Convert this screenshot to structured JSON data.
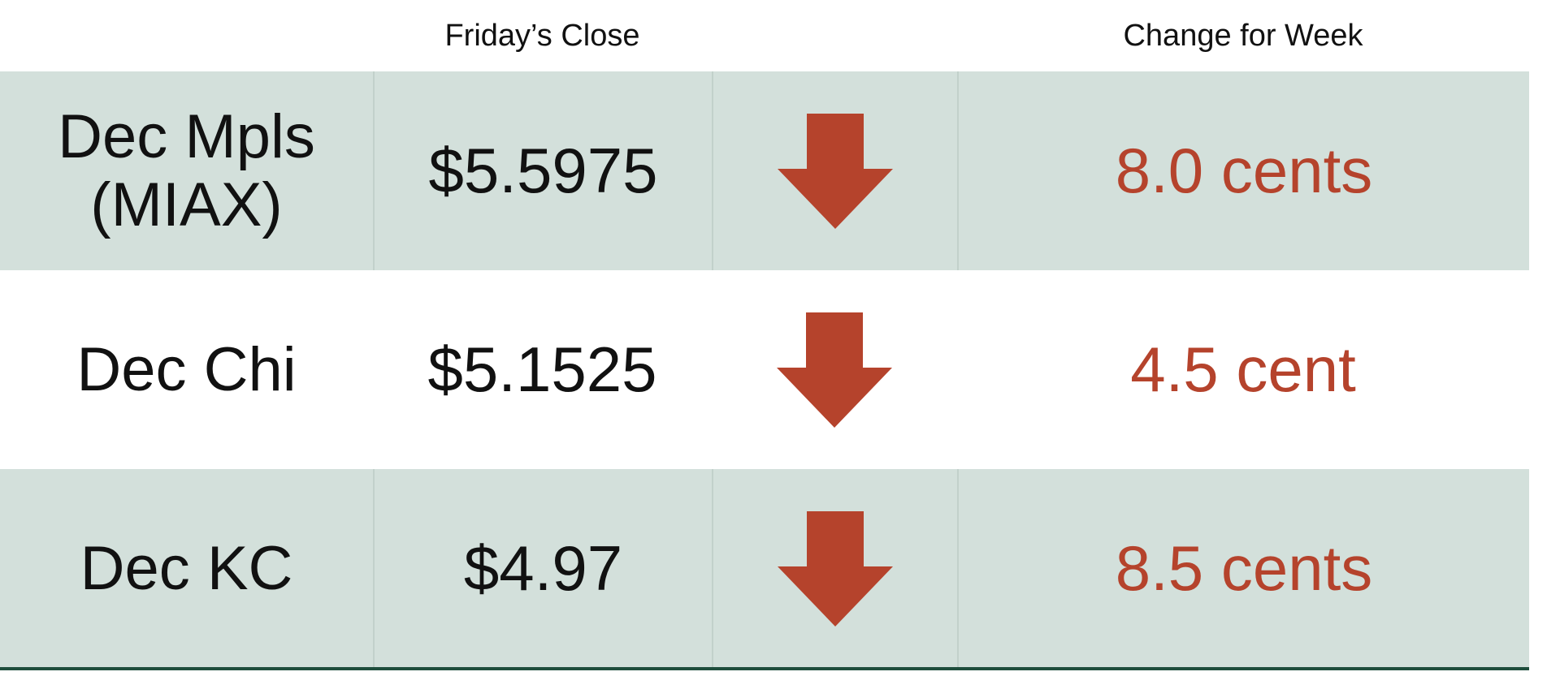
{
  "header": {
    "columns": [
      "Friday’s Close",
      "Change for Week"
    ]
  },
  "table": {
    "rows": [
      {
        "label": [
          "Dec Mpls",
          "(MIAX)"
        ],
        "close": "$5.5975",
        "change": "8.0 cents"
      },
      {
        "label": [
          "Dec Chi"
        ],
        "close": "$5.1525",
        "change": "4.5 cent"
      },
      {
        "label": [
          "Dec KC"
        ],
        "close": "$4.97",
        "change": "8.5 cents"
      }
    ]
  }
}
